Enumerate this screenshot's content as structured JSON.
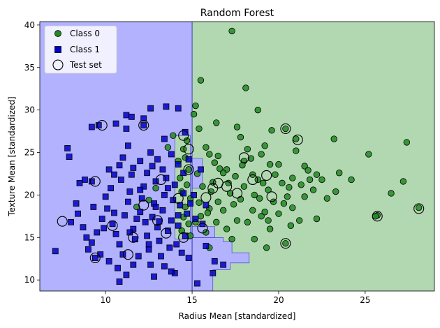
{
  "chart_data": {
    "type": "scatter",
    "title": "Random Forest",
    "xlabel": "Radius Mean [standardized]",
    "ylabel": "Texture Mean [standardized]",
    "xlim": [
      6.2,
      29.0
    ],
    "ylim": [
      8.7,
      40.4
    ],
    "xticks": [
      10,
      15,
      20,
      25
    ],
    "yticks": [
      10,
      15,
      20,
      25,
      30,
      35,
      40
    ],
    "legend_position": "top-left",
    "region_colors": {
      "class0": "#b2d8b2",
      "class1": "#b2b2ff"
    },
    "decision_regions": [
      {
        "class": 1,
        "polygon": [
          [
            6.2,
            8.7
          ],
          [
            15.0,
            8.7
          ],
          [
            15.0,
            40.4
          ],
          [
            6.2,
            40.4
          ]
        ]
      },
      {
        "class": 0,
        "polygon": [
          [
            15.0,
            8.7
          ],
          [
            29.0,
            8.7
          ],
          [
            29.0,
            40.4
          ],
          [
            15.0,
            40.4
          ]
        ]
      },
      {
        "class": 0,
        "polygon": [
          [
            14.0,
            14.8
          ],
          [
            14.9,
            14.8
          ],
          [
            14.9,
            27.0
          ],
          [
            14.0,
            27.0
          ]
        ]
      },
      {
        "class": 1,
        "polygon": [
          [
            15.0,
            15.0
          ],
          [
            16.8,
            15.0
          ],
          [
            16.8,
            14.5
          ],
          [
            17.3,
            14.5
          ],
          [
            17.3,
            13.2
          ],
          [
            18.3,
            13.2
          ],
          [
            18.3,
            12.0
          ],
          [
            17.2,
            12.0
          ],
          [
            17.2,
            11.2
          ],
          [
            16.2,
            11.2
          ],
          [
            16.2,
            8.7
          ],
          [
            15.0,
            8.7
          ]
        ]
      },
      {
        "class": 1,
        "polygon": [
          [
            15.0,
            16.3
          ],
          [
            16.3,
            16.3
          ],
          [
            16.3,
            15.0
          ],
          [
            15.0,
            15.0
          ]
        ]
      },
      {
        "class": 1,
        "polygon": [
          [
            15.0,
            20.8
          ],
          [
            15.6,
            20.8
          ],
          [
            15.6,
            24.3
          ],
          [
            15.0,
            24.3
          ]
        ]
      }
    ],
    "series": [
      {
        "name": "Class 0",
        "marker": "circle",
        "color": "#228b22",
        "points": [
          [
            17.3,
            39.3
          ],
          [
            15.5,
            33.5
          ],
          [
            15.2,
            30.5
          ],
          [
            15.1,
            29.5
          ],
          [
            15.4,
            27.8
          ],
          [
            15.8,
            25.6
          ],
          [
            16.0,
            24.8
          ],
          [
            16.3,
            23.8
          ],
          [
            16.5,
            24.6
          ],
          [
            17.0,
            23.0
          ],
          [
            17.8,
            26.8
          ],
          [
            18.0,
            24.0
          ],
          [
            18.2,
            25.4
          ],
          [
            18.5,
            22.4
          ],
          [
            18.8,
            21.8
          ],
          [
            19.0,
            24.8
          ],
          [
            19.2,
            25.8
          ],
          [
            19.5,
            23.6
          ],
          [
            19.8,
            22.4
          ],
          [
            20.0,
            23.6
          ],
          [
            20.2,
            21.4
          ],
          [
            20.5,
            19.8
          ],
          [
            20.8,
            22.0
          ],
          [
            21.0,
            25.2
          ],
          [
            21.5,
            23.4
          ],
          [
            21.8,
            21.8
          ],
          [
            22.0,
            20.6
          ],
          [
            22.5,
            21.8
          ],
          [
            23.2,
            26.6
          ],
          [
            23.5,
            22.6
          ],
          [
            24.2,
            21.8
          ],
          [
            25.2,
            24.8
          ],
          [
            27.4,
            26.2
          ],
          [
            27.2,
            21.6
          ],
          [
            26.5,
            20.2
          ],
          [
            25.7,
            17.6
          ],
          [
            28.1,
            18.5
          ],
          [
            23.3,
            20.4
          ],
          [
            21.2,
            17.0
          ],
          [
            22.2,
            17.2
          ],
          [
            20.4,
            14.3
          ],
          [
            19.5,
            16.0
          ],
          [
            19.0,
            17.5
          ],
          [
            18.5,
            18.2
          ],
          [
            17.8,
            19.5
          ],
          [
            17.2,
            20.2
          ],
          [
            16.5,
            19.2
          ],
          [
            16.0,
            18.4
          ],
          [
            15.5,
            17.5
          ],
          [
            15.2,
            16.8
          ],
          [
            15.8,
            15.6
          ],
          [
            16.8,
            18.2
          ],
          [
            17.6,
            17.0
          ],
          [
            18.2,
            16.8
          ],
          [
            19.2,
            18.0
          ],
          [
            20.0,
            17.8
          ],
          [
            20.8,
            18.5
          ],
          [
            21.5,
            19.8
          ],
          [
            16.2,
            21.5
          ],
          [
            16.8,
            22.6
          ],
          [
            17.5,
            22.2
          ],
          [
            18.0,
            21.0
          ],
          [
            18.6,
            20.0
          ],
          [
            19.4,
            20.6
          ],
          [
            15.3,
            22.5
          ],
          [
            15.6,
            21.0
          ],
          [
            16.1,
            20.4
          ],
          [
            16.6,
            23.1
          ],
          [
            17.1,
            21.4
          ],
          [
            17.9,
            23.5
          ],
          [
            18.9,
            19.6
          ],
          [
            19.7,
            19.2
          ],
          [
            20.6,
            20.9
          ],
          [
            21.3,
            21.2
          ],
          [
            22.8,
            19.6
          ],
          [
            15.4,
            19.1
          ],
          [
            15.9,
            17.9
          ],
          [
            16.4,
            16.8
          ],
          [
            17.4,
            18.9
          ],
          [
            19.1,
            21.4
          ],
          [
            20.3,
            19.0
          ],
          [
            21.7,
            22.9
          ],
          [
            14.5,
            25.4
          ],
          [
            14.6,
            24.4
          ],
          [
            14.8,
            23.0
          ],
          [
            14.3,
            22.0
          ],
          [
            14.7,
            21.2
          ],
          [
            14.4,
            20.4
          ],
          [
            14.9,
            19.6
          ],
          [
            14.6,
            18.6
          ],
          [
            14.5,
            17.4
          ],
          [
            14.8,
            16.6
          ],
          [
            14.4,
            15.8
          ],
          [
            14.9,
            15.2
          ],
          [
            14.7,
            26.4
          ],
          [
            14.2,
            24.0
          ],
          [
            18.4,
            24.3
          ],
          [
            17.6,
            28.0
          ],
          [
            18.8,
            30.0
          ],
          [
            19.6,
            27.6
          ],
          [
            20.4,
            27.8
          ],
          [
            21.0,
            26.6
          ],
          [
            22.2,
            22.4
          ],
          [
            25.6,
            17.5
          ],
          [
            16.4,
            28.5
          ],
          [
            18.1,
            32.6
          ],
          [
            19.4,
            17.0
          ],
          [
            20.7,
            16.4
          ],
          [
            17.0,
            16.0
          ],
          [
            16.0,
            13.8
          ],
          [
            17.3,
            14.8
          ],
          [
            18.6,
            14.8
          ],
          [
            19.3,
            13.8
          ],
          [
            13.9,
            27.0
          ],
          [
            13.6,
            25.6
          ],
          [
            12.9,
            20.8
          ],
          [
            12.5,
            19.4
          ],
          [
            11.8,
            18.6
          ]
        ]
      },
      {
        "name": "Class 1",
        "marker": "square",
        "color": "#0000cd",
        "points": [
          [
            7.8,
            25.5
          ],
          [
            7.9,
            24.5
          ],
          [
            9.6,
            28.2
          ],
          [
            11.2,
            29.4
          ],
          [
            11.5,
            29.2
          ],
          [
            12.2,
            29.0
          ],
          [
            12.6,
            30.2
          ],
          [
            13.5,
            30.4
          ],
          [
            14.2,
            30.2
          ],
          [
            14.6,
            27.4
          ],
          [
            11.2,
            27.8
          ],
          [
            10.6,
            28.4
          ],
          [
            9.2,
            28.0
          ],
          [
            12.2,
            28.2
          ],
          [
            8.8,
            21.8
          ],
          [
            8.5,
            21.4
          ],
          [
            8.3,
            19.0
          ],
          [
            9.2,
            21.6
          ],
          [
            10.2,
            23.0
          ],
          [
            10.5,
            22.4
          ],
          [
            10.8,
            23.5
          ],
          [
            11.0,
            24.4
          ],
          [
            11.3,
            25.8
          ],
          [
            11.6,
            23.2
          ],
          [
            12.0,
            24.0
          ],
          [
            12.4,
            22.6
          ],
          [
            12.6,
            25.0
          ],
          [
            13.0,
            24.2
          ],
          [
            13.4,
            26.6
          ],
          [
            13.8,
            24.8
          ],
          [
            14.2,
            23.6
          ],
          [
            14.5,
            22.6
          ],
          [
            14.8,
            24.2
          ],
          [
            8.0,
            16.8
          ],
          [
            8.4,
            17.8
          ],
          [
            8.7,
            16.2
          ],
          [
            8.9,
            15.0
          ],
          [
            9.0,
            13.6
          ],
          [
            9.2,
            14.4
          ],
          [
            9.4,
            12.6
          ],
          [
            7.1,
            13.4
          ],
          [
            9.8,
            17.2
          ],
          [
            10.1,
            18.4
          ],
          [
            10.4,
            16.6
          ],
          [
            10.6,
            15.4
          ],
          [
            10.8,
            14.2
          ],
          [
            11.0,
            13.0
          ],
          [
            11.1,
            17.6
          ],
          [
            11.3,
            19.2
          ],
          [
            11.4,
            20.4
          ],
          [
            11.6,
            16.0
          ],
          [
            11.7,
            14.8
          ],
          [
            11.9,
            12.8
          ],
          [
            12.0,
            18.0
          ],
          [
            12.1,
            19.6
          ],
          [
            12.2,
            21.0
          ],
          [
            12.3,
            16.8
          ],
          [
            12.4,
            15.2
          ],
          [
            12.5,
            13.6
          ],
          [
            12.6,
            11.8
          ],
          [
            12.7,
            17.4
          ],
          [
            12.8,
            19.0
          ],
          [
            12.9,
            21.6
          ],
          [
            13.0,
            16.2
          ],
          [
            13.1,
            14.6
          ],
          [
            13.2,
            12.8
          ],
          [
            13.3,
            18.2
          ],
          [
            13.4,
            20.0
          ],
          [
            13.5,
            22.0
          ],
          [
            13.6,
            15.8
          ],
          [
            13.7,
            13.8
          ],
          [
            13.8,
            17.0
          ],
          [
            13.9,
            19.4
          ],
          [
            14.0,
            21.2
          ],
          [
            14.1,
            14.2
          ],
          [
            14.2,
            16.4
          ],
          [
            14.3,
            18.8
          ],
          [
            14.4,
            13.2
          ],
          [
            14.5,
            20.2
          ],
          [
            14.6,
            15.2
          ],
          [
            14.7,
            17.8
          ],
          [
            14.8,
            12.6
          ],
          [
            14.9,
            19.0
          ],
          [
            10.0,
            19.8
          ],
          [
            10.3,
            20.8
          ],
          [
            10.9,
            21.8
          ],
          [
            11.5,
            22.4
          ],
          [
            12.7,
            23.4
          ],
          [
            13.3,
            23.0
          ],
          [
            9.5,
            15.6
          ],
          [
            9.7,
            13.0
          ],
          [
            10.2,
            12.2
          ],
          [
            10.7,
            11.4
          ],
          [
            11.2,
            10.6
          ],
          [
            11.6,
            11.8
          ],
          [
            12.8,
            10.4
          ],
          [
            13.4,
            11.6
          ],
          [
            14.0,
            10.8
          ],
          [
            10.8,
            9.8
          ],
          [
            13.8,
            11.0
          ],
          [
            12.0,
            20.6
          ],
          [
            11.8,
            17.2
          ],
          [
            12.9,
            18.6
          ],
          [
            13.6,
            20.8
          ],
          [
            14.2,
            17.6
          ],
          [
            11.4,
            15.6
          ],
          [
            12.5,
            14.2
          ],
          [
            13.1,
            16.9
          ],
          [
            10.5,
            17.9
          ],
          [
            9.9,
            16.1
          ],
          [
            9.3,
            18.6
          ],
          [
            15.6,
            16.6
          ],
          [
            16.3,
            12.2
          ],
          [
            16.8,
            11.8
          ],
          [
            15.3,
            9.6
          ],
          [
            15.8,
            14.0
          ],
          [
            16.2,
            10.8
          ],
          [
            15.5,
            23.0
          ],
          [
            15.8,
            18.8
          ],
          [
            15.1,
            20.0
          ],
          [
            15.2,
            17.2
          ]
        ]
      },
      {
        "name": "Test set",
        "marker": "open-circle",
        "color": "#000000",
        "points": [
          [
            9.8,
            28.2
          ],
          [
            12.2,
            28.2
          ],
          [
            14.5,
            27.0
          ],
          [
            14.8,
            25.4
          ],
          [
            9.4,
            21.6
          ],
          [
            7.5,
            16.9
          ],
          [
            9.4,
            12.6
          ],
          [
            11.3,
            13.0
          ],
          [
            16.5,
            21.4
          ],
          [
            17.0,
            21.0
          ],
          [
            18.5,
            21.8
          ],
          [
            19.3,
            22.3
          ],
          [
            19.6,
            19.8
          ],
          [
            20.4,
            27.8
          ],
          [
            21.1,
            26.5
          ],
          [
            18.0,
            24.4
          ],
          [
            20.4,
            14.3
          ],
          [
            25.7,
            17.5
          ],
          [
            28.1,
            18.4
          ],
          [
            15.8,
            19.7
          ],
          [
            15.6,
            16.1
          ],
          [
            13.0,
            17.0
          ],
          [
            13.5,
            15.5
          ],
          [
            12.2,
            18.8
          ],
          [
            14.2,
            19.6
          ],
          [
            14.5,
            15.0
          ],
          [
            11.6,
            15.0
          ],
          [
            10.4,
            16.4
          ],
          [
            13.2,
            21.8
          ],
          [
            14.8,
            23.0
          ],
          [
            16.2,
            20.8
          ],
          [
            17.6,
            20.2
          ]
        ]
      }
    ]
  }
}
